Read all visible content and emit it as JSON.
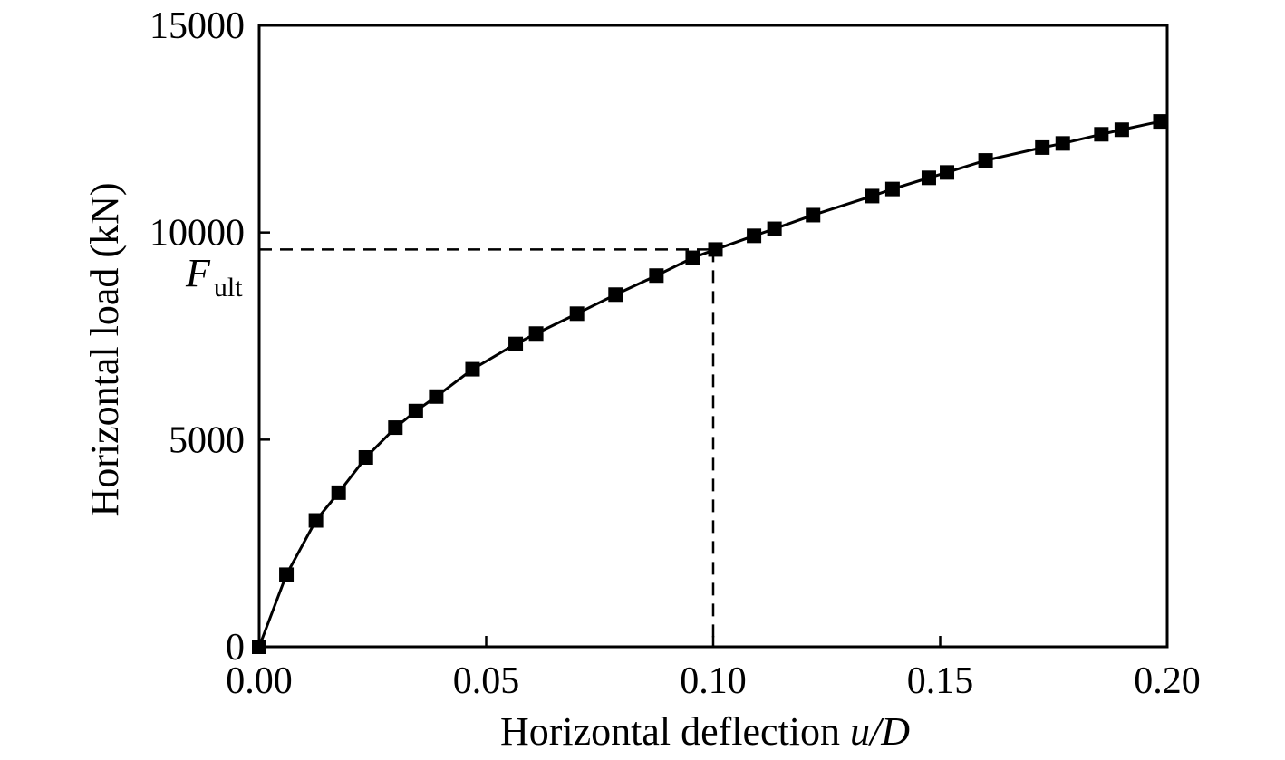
{
  "chart_data": {
    "type": "line",
    "title": "",
    "xlabel": {
      "main": "Horizontal deflection ",
      "italic": "u/D"
    },
    "ylabel": "Horizontal load (kN)",
    "xlim": [
      0,
      0.2
    ],
    "ylim": [
      0,
      15000
    ],
    "xticks": [
      "0.00",
      "0.05",
      "0.10",
      "0.15",
      "0.20"
    ],
    "yticks": [
      "0",
      "5000",
      "10000",
      "15000"
    ],
    "xtick_values": [
      0,
      0.05,
      0.1,
      0.15,
      0.2
    ],
    "ytick_values": [
      0,
      5000,
      10000,
      15000
    ],
    "grid": false,
    "legend": "none",
    "marker": "square",
    "colors": {
      "line": "#000000",
      "marker": "#000000",
      "reference": "#000000"
    },
    "series": [
      {
        "x": [
          0,
          0.006,
          0.0125,
          0.0175,
          0.0235,
          0.03,
          0.0345,
          0.039,
          0.047,
          0.0565,
          0.061,
          0.07,
          0.0785,
          0.0875,
          0.0955,
          0.1005,
          0.109,
          0.1135,
          0.122,
          0.135,
          0.1395,
          0.1475,
          0.1515,
          0.16,
          0.1725,
          0.177,
          0.1855,
          0.19,
          0.1985
        ],
        "y": [
          0,
          1740,
          3050,
          3720,
          4570,
          5290,
          5690,
          6040,
          6700,
          7310,
          7560,
          8040,
          8500,
          8960,
          9390,
          9590,
          9920,
          10090,
          10420,
          10880,
          11050,
          11320,
          11450,
          11740,
          12050,
          12150,
          12370,
          12480,
          12680
        ]
      }
    ],
    "reference": {
      "label": "F",
      "label_sub": "ult",
      "x": 0.1,
      "y": 9590
    }
  }
}
